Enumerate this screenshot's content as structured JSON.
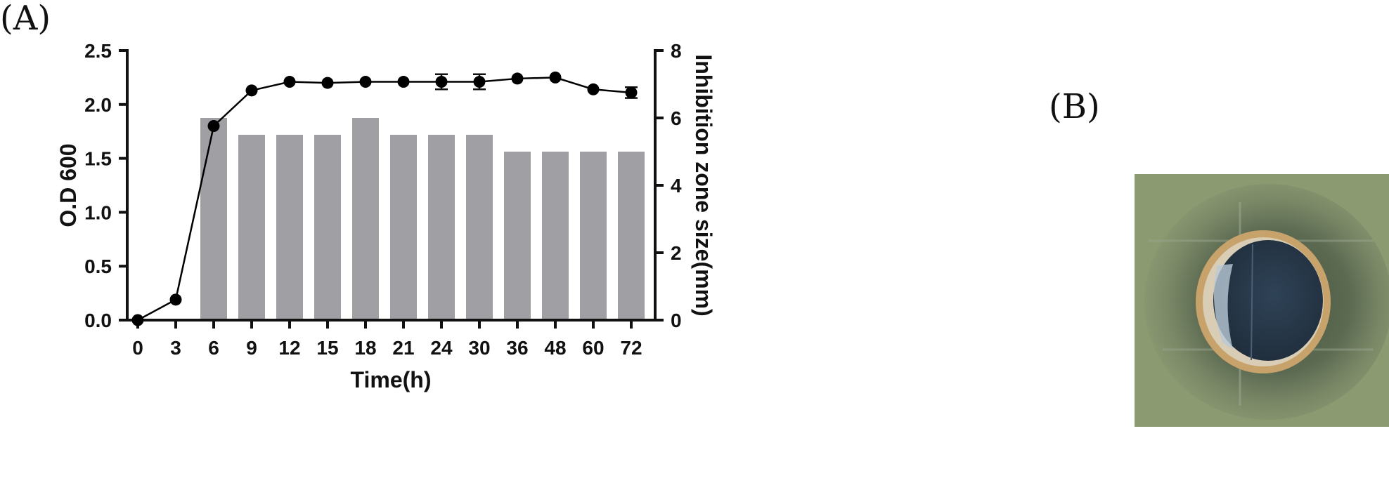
{
  "panels": {
    "a_label": "(A)",
    "b_label": "(B)"
  },
  "chart_data": {
    "type": "bar+line",
    "title": "",
    "xlabel": "Time(h)",
    "ylabel_left": "O.D 600",
    "ylabel_right": "Inhibition zone size(mm)",
    "categories": [
      "0",
      "3",
      "6",
      "9",
      "12",
      "15",
      "18",
      "21",
      "24",
      "30",
      "36",
      "48",
      "60",
      "72"
    ],
    "ylim_left": [
      0,
      2.5
    ],
    "yticks_left": [
      "0.0",
      "0.5",
      "1.0",
      "1.5",
      "2.0",
      "2.5"
    ],
    "ylim_right": [
      0,
      8
    ],
    "yticks_right": [
      "0",
      "2",
      "4",
      "6",
      "8"
    ],
    "bars": {
      "axis": "right",
      "color": "#a0a0a4",
      "values": [
        null,
        null,
        6.0,
        5.5,
        5.5,
        5.5,
        6.0,
        5.5,
        5.5,
        5.5,
        5.0,
        5.0,
        5.0,
        5.0
      ]
    },
    "line": {
      "axis": "left",
      "color": "#000000",
      "values": [
        0.0,
        0.19,
        1.8,
        2.13,
        2.21,
        2.2,
        2.21,
        2.21,
        2.21,
        2.21,
        2.24,
        2.25,
        2.14,
        2.11
      ],
      "errors": [
        0,
        0,
        0,
        0,
        0,
        0,
        0,
        0,
        0.07,
        0.07,
        0,
        0,
        0,
        0.05
      ]
    },
    "grid": false
  },
  "image_b": {
    "plate_color": "#8c9a72",
    "halo_color": "#5c6a52",
    "well_color": "#33465a",
    "rim_color": "#c9a878"
  }
}
